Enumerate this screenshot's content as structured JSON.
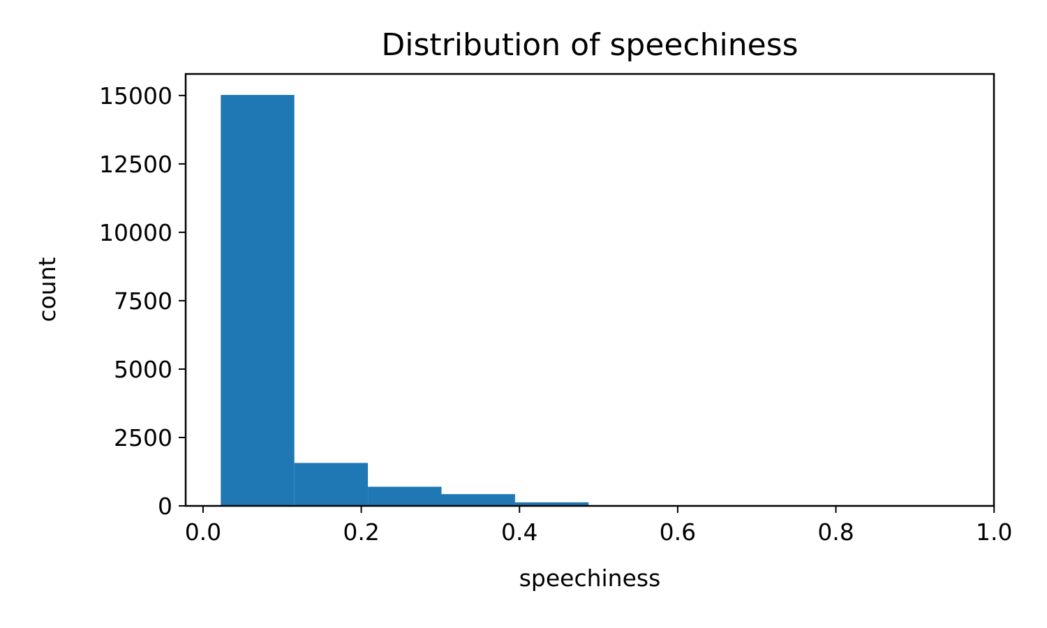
{
  "chart_data": {
    "type": "bar",
    "title": "Distribution of speechiness",
    "xlabel": "speechiness",
    "ylabel": "count",
    "xlim": [
      -0.022,
      0.9998
    ],
    "ylim": [
      0,
      15787
    ],
    "x_ticks": [
      {
        "value": 0.0,
        "label": "0.0"
      },
      {
        "value": 0.2,
        "label": "0.2"
      },
      {
        "value": 0.4,
        "label": "0.4"
      },
      {
        "value": 0.6,
        "label": "0.6"
      },
      {
        "value": 0.8,
        "label": "0.8"
      },
      {
        "value": 1.0,
        "label": "1.0"
      }
    ],
    "y_ticks": [
      {
        "value": 0,
        "label": "0"
      },
      {
        "value": 2500,
        "label": "2500"
      },
      {
        "value": 5000,
        "label": "5000"
      },
      {
        "value": 7500,
        "label": "7500"
      },
      {
        "value": 10000,
        "label": "10000"
      },
      {
        "value": 12500,
        "label": "12500"
      },
      {
        "value": 15000,
        "label": "15000"
      }
    ],
    "bins": [
      {
        "x0": 0.0224,
        "x1": 0.1154,
        "count": 15020
      },
      {
        "x0": 0.1154,
        "x1": 0.2084,
        "count": 1570
      },
      {
        "x0": 0.2084,
        "x1": 0.3014,
        "count": 700
      },
      {
        "x0": 0.3014,
        "x1": 0.3944,
        "count": 430
      },
      {
        "x0": 0.3944,
        "x1": 0.4874,
        "count": 130
      },
      {
        "x0": 0.4874,
        "x1": 0.5804,
        "count": 25
      },
      {
        "x0": 0.5804,
        "x1": 0.6734,
        "count": 8
      },
      {
        "x0": 0.6734,
        "x1": 0.7664,
        "count": 4
      },
      {
        "x0": 0.7664,
        "x1": 0.8594,
        "count": 2
      },
      {
        "x0": 0.8594,
        "x1": 0.9524,
        "count": 1
      }
    ],
    "bar_color": "#1f77b4",
    "grid": false,
    "legend": "none"
  }
}
